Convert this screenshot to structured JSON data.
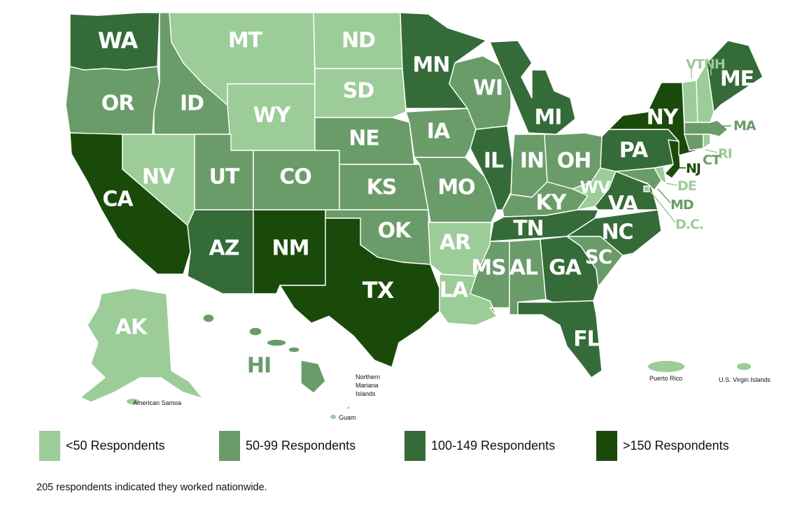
{
  "colors": {
    "lt50": "#9ccc98",
    "r50_99": "#6a9c69",
    "r100_149": "#356b38",
    "gt150": "#1a4a0a",
    "background": "#ffffff",
    "text": "#111111"
  },
  "states": {
    "WA": {
      "label": "WA",
      "bin": "r100_149"
    },
    "OR": {
      "label": "OR",
      "bin": "r50_99"
    },
    "CA": {
      "label": "CA",
      "bin": "gt150"
    },
    "NV": {
      "label": "NV",
      "bin": "lt50"
    },
    "ID": {
      "label": "ID",
      "bin": "r50_99"
    },
    "MT": {
      "label": "MT",
      "bin": "lt50"
    },
    "WY": {
      "label": "WY",
      "bin": "lt50"
    },
    "UT": {
      "label": "UT",
      "bin": "r50_99"
    },
    "CO": {
      "label": "CO",
      "bin": "r50_99"
    },
    "AZ": {
      "label": "AZ",
      "bin": "r100_149"
    },
    "NM": {
      "label": "NM",
      "bin": "gt150"
    },
    "ND": {
      "label": "ND",
      "bin": "lt50"
    },
    "SD": {
      "label": "SD",
      "bin": "lt50"
    },
    "NE": {
      "label": "NE",
      "bin": "r50_99"
    },
    "KS": {
      "label": "KS",
      "bin": "r50_99"
    },
    "OK": {
      "label": "OK",
      "bin": "r50_99"
    },
    "TX": {
      "label": "TX",
      "bin": "gt150"
    },
    "MN": {
      "label": "MN",
      "bin": "r100_149"
    },
    "IA": {
      "label": "IA",
      "bin": "r50_99"
    },
    "MO": {
      "label": "MO",
      "bin": "r50_99"
    },
    "AR": {
      "label": "AR",
      "bin": "lt50"
    },
    "LA": {
      "label": "LA",
      "bin": "lt50"
    },
    "WI": {
      "label": "WI",
      "bin": "r50_99"
    },
    "IL": {
      "label": "IL",
      "bin": "r100_149"
    },
    "MI": {
      "label": "MI",
      "bin": "r100_149"
    },
    "IN": {
      "label": "IN",
      "bin": "r50_99"
    },
    "OH": {
      "label": "OH",
      "bin": "r50_99"
    },
    "KY": {
      "label": "KY",
      "bin": "r50_99"
    },
    "TN": {
      "label": "TN",
      "bin": "r100_149"
    },
    "MS": {
      "label": "MS",
      "bin": "r50_99"
    },
    "AL": {
      "label": "AL",
      "bin": "r50_99"
    },
    "GA": {
      "label": "GA",
      "bin": "r100_149"
    },
    "FL": {
      "label": "FL",
      "bin": "r100_149"
    },
    "SC": {
      "label": "SC",
      "bin": "r50_99"
    },
    "NC": {
      "label": "NC",
      "bin": "r100_149"
    },
    "VA": {
      "label": "VA",
      "bin": "r100_149"
    },
    "WV": {
      "label": "WV",
      "bin": "lt50"
    },
    "PA": {
      "label": "PA",
      "bin": "r100_149"
    },
    "NY": {
      "label": "NY",
      "bin": "gt150"
    },
    "NJ": {
      "label": "NJ",
      "bin": "gt150"
    },
    "DE": {
      "label": "DE",
      "bin": "lt50"
    },
    "MD": {
      "label": "MD",
      "bin": "r50_99"
    },
    "DC": {
      "label": "D.C.",
      "bin": "lt50"
    },
    "CT": {
      "label": "CT",
      "bin": "r50_99"
    },
    "RI": {
      "label": "RI",
      "bin": "lt50"
    },
    "MA": {
      "label": "MA",
      "bin": "r50_99"
    },
    "VT": {
      "label": "VT",
      "bin": "lt50"
    },
    "NH": {
      "label": "NH",
      "bin": "lt50"
    },
    "ME": {
      "label": "ME",
      "bin": "r100_149"
    },
    "AK": {
      "label": "AK",
      "bin": "lt50"
    },
    "HI": {
      "label": "HI",
      "bin": "r50_99"
    }
  },
  "territories": {
    "american_samoa": {
      "label": "American Samoa",
      "bin": "lt50"
    },
    "guam": {
      "label": "Guam",
      "bin": "lt50"
    },
    "northern_mariana_islands": {
      "label": "Northern Mariana Islands",
      "lines": [
        "Northern",
        "Mariana",
        "Islands"
      ],
      "bin": "lt50"
    },
    "puerto_rico": {
      "label": "Puerto Rico",
      "bin": "lt50"
    },
    "us_virgin_islands": {
      "label": "U.S. Virgin Islands",
      "bin": "lt50"
    }
  },
  "legend": {
    "items": [
      {
        "key": "lt50",
        "label": "<50 Respondents"
      },
      {
        "key": "r50_99",
        "label": "50-99 Respondents"
      },
      {
        "key": "r100_149",
        "label": "100-149 Respondents"
      },
      {
        "key": "gt150",
        "label": ">150 Respondents"
      }
    ]
  },
  "footnote": "205 respondents indicated they worked nationwide."
}
